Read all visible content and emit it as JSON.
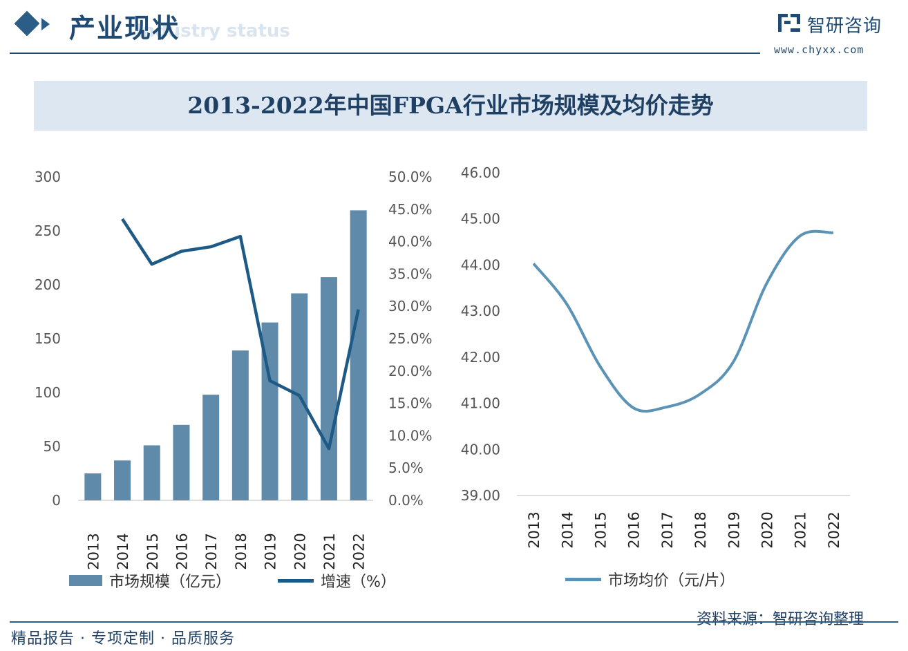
{
  "header": {
    "title": "产业现状",
    "subtitle_watermark": "Industry status",
    "logo_name": "智研咨询",
    "logo_url": "www.chyxx.com"
  },
  "main_title": "2013-2022年中国FPGA行业市场规模及均价走势",
  "footer": {
    "left": "精品报告 · 专项定制 · 品质服务",
    "source": "资料来源：智研咨询整理"
  },
  "colors": {
    "bar": "#5f8aaa",
    "growth_line": "#1d5a86",
    "price_line": "#5b93b6",
    "axis": "#666666"
  },
  "chart_data": [
    {
      "type": "bar",
      "categories": [
        "2013",
        "2014",
        "2015",
        "2016",
        "2017",
        "2018",
        "2019",
        "2020",
        "2021",
        "2022"
      ],
      "series": [
        {
          "name": "市场规模（亿元）",
          "type": "bar",
          "axis": "left",
          "values": [
            25,
            37,
            51,
            70,
            98,
            139,
            165,
            192,
            207,
            269
          ]
        },
        {
          "name": "增速（%）",
          "type": "line",
          "axis": "right",
          "values": [
            null,
            43.5,
            36.5,
            38.5,
            39.2,
            40.8,
            18.5,
            16.2,
            8.0,
            29.5
          ]
        }
      ],
      "ylim": [
        0,
        300
      ],
      "yticks": [
        "0",
        "50",
        "100",
        "150",
        "200",
        "250",
        "300"
      ],
      "y2lim": [
        0,
        50
      ],
      "y2ticks": [
        "0.0%",
        "5.0%",
        "10.0%",
        "15.0%",
        "20.0%",
        "25.0%",
        "30.0%",
        "35.0%",
        "40.0%",
        "45.0%",
        "50.0%"
      ],
      "legend": [
        "市场规模（亿元）",
        "增速（%）"
      ],
      "legend_position": "bottom"
    },
    {
      "type": "line",
      "categories": [
        "2013",
        "2014",
        "2015",
        "2016",
        "2017",
        "2018",
        "2019",
        "2020",
        "2021",
        "2022"
      ],
      "series": [
        {
          "name": "市场均价（元/片）",
          "values": [
            44.03,
            43.15,
            41.8,
            40.9,
            40.92,
            41.2,
            41.9,
            43.6,
            44.63,
            44.7
          ]
        }
      ],
      "ylim": [
        39,
        46
      ],
      "yticks": [
        "39.00",
        "40.00",
        "41.00",
        "42.00",
        "43.00",
        "44.00",
        "45.00",
        "46.00"
      ],
      "legend": [
        "市场均价（元/片）"
      ],
      "legend_position": "bottom"
    }
  ]
}
